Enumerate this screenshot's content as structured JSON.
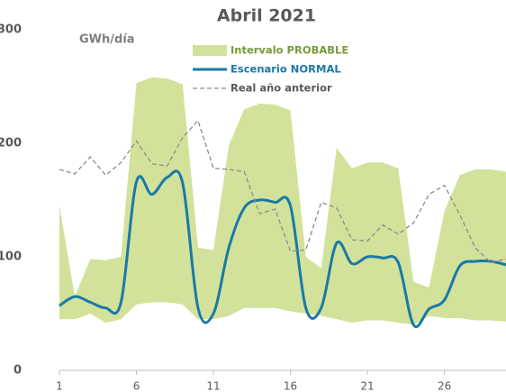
{
  "chart_data": {
    "type": "line",
    "title": "Abril 2021",
    "y_label": "GWh/día",
    "x": [
      1,
      2,
      3,
      4,
      5,
      6,
      7,
      8,
      9,
      10,
      11,
      12,
      13,
      14,
      15,
      16,
      17,
      18,
      19,
      20,
      21,
      22,
      23,
      24,
      25,
      26,
      27,
      28,
      29,
      30
    ],
    "xlim": [
      1,
      30
    ],
    "xticks": [
      1,
      6,
      11,
      16,
      21,
      26
    ],
    "ylim": [
      0,
      300
    ],
    "yticks": [
      0,
      100,
      200,
      300
    ],
    "grid": false,
    "series": [
      {
        "name": "Intervalo PROBABLE",
        "color": "#d2e29a",
        "kind": "band",
        "upper": [
          145,
          65,
          98,
          97,
          100,
          253,
          258,
          257,
          252,
          108,
          106,
          198,
          230,
          235,
          234,
          229,
          100,
          90,
          196,
          178,
          183,
          183,
          178,
          78,
          73,
          140,
          172,
          177,
          177,
          175
        ],
        "lower": [
          45,
          45,
          50,
          42,
          45,
          58,
          60,
          60,
          58,
          45,
          45,
          48,
          55,
          55,
          55,
          52,
          50,
          48,
          45,
          42,
          44,
          44,
          42,
          40,
          48,
          46,
          46,
          44,
          44,
          43
        ]
      },
      {
        "name": "Escenario NORMAL",
        "color": "#1a78a8",
        "values": [
          57,
          65,
          60,
          55,
          60,
          166,
          155,
          170,
          165,
          55,
          50,
          108,
          143,
          150,
          148,
          145,
          55,
          55,
          112,
          94,
          100,
          99,
          95,
          40,
          54,
          62,
          92,
          96,
          96,
          93
        ]
      },
      {
        "name": "Real año anterior",
        "color": "#8c8c8c",
        "dashed": true,
        "values": [
          177,
          173,
          188,
          172,
          183,
          202,
          182,
          180,
          205,
          220,
          178,
          177,
          175,
          138,
          142,
          105,
          106,
          148,
          143,
          115,
          114,
          128,
          120,
          130,
          155,
          163,
          137,
          108,
          95,
          98
        ]
      }
    ]
  }
}
